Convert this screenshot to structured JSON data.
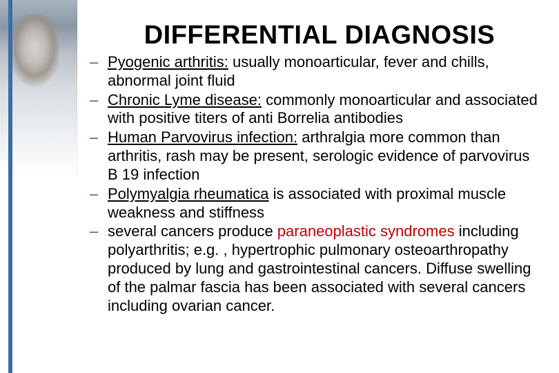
{
  "title": "DIFFERENTIAL DIAGNOSIS",
  "colors": {
    "bullet": "#385d8a",
    "text": "#000000",
    "highlight": "#c00000",
    "accentBar": "#3a6ea5",
    "background": "#ffffff"
  },
  "typography": {
    "titleFontSize": 38,
    "titleWeight": 700,
    "bodyFontSize": 22,
    "lineHeight": 1.22,
    "fontFamily": "Arial"
  },
  "items": [
    {
      "term": "Pyogenic arthritis:",
      "rest": " usually monoarticular, fever and chills, abnormal joint fluid"
    },
    {
      "term": "Chronic Lyme disease:",
      "rest": " commonly monoarticular and associated with positive titers of anti Borrelia antibodies"
    },
    {
      "term": "Human Parvovirus infection:",
      "rest": " arthralgia more common than arthritis, rash may be present, serologic evidence of parvovirus B 19 infection"
    },
    {
      "term": "Polymyalgia rheumatica",
      "rest": " is associated with proximal muscle weakness and stiffness"
    },
    {
      "pre": "several cancers produce ",
      "highlight": "paraneoplastic syndromes",
      "rest": " including polyarthritis; e.g. , hypertrophic pulmonary osteoarthropathy produced by lung and gastrointestinal cancers. Diffuse swelling of the palmar fascia has been associated with several cancers including ovarian cancer."
    }
  ]
}
